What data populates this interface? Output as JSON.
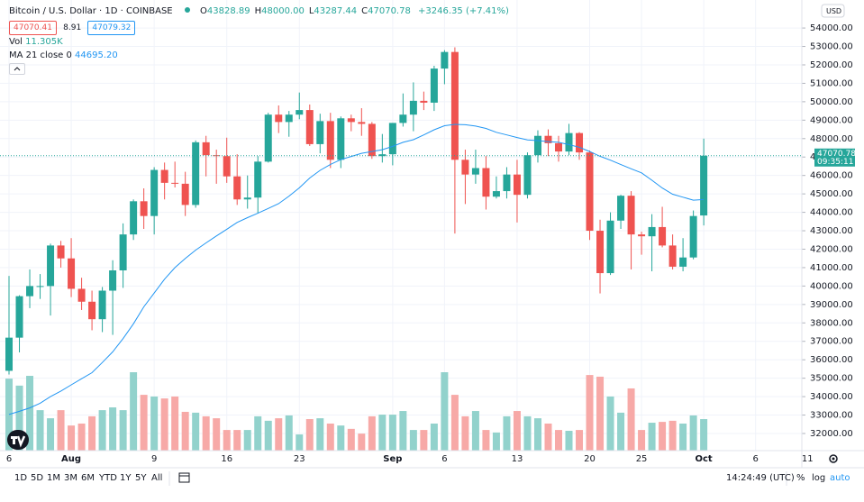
{
  "header": {
    "symbol": "Bitcoin / U.S. Dollar · 1D · COINBASE",
    "ohlc": [
      {
        "label": "O",
        "value": "43828.89"
      },
      {
        "label": "H",
        "value": "48000.00"
      },
      {
        "label": "L",
        "value": "43287.44"
      },
      {
        "label": "C",
        "value": "47070.78"
      }
    ],
    "change": "+3246.35 (+7.41%)",
    "bid": "47070.41",
    "spread": "8.91",
    "ask": "47079.32",
    "volume_label": "Vol",
    "volume_value": "11.305K",
    "ma_label": "MA 21 close 0",
    "ma_value": "44695.20"
  },
  "chart_data": {
    "type": "candlestick",
    "open": [
      35400,
      37200,
      39450,
      40000,
      40000,
      42200,
      41500,
      39850,
      39150,
      38200,
      39750,
      40850,
      42800,
      44600,
      43800,
      46300,
      45600,
      45550,
      44400,
      47800,
      47100,
      47050,
      45950,
      44700,
      44800,
      46750,
      49300,
      48900,
      49300,
      49550,
      47700,
      48950,
      46850,
      49100,
      48900,
      48800,
      47050,
      47150,
      48850,
      49300,
      50050,
      49950,
      51800,
      52700,
      46850,
      46050,
      46400,
      44850,
      45150,
      46050,
      44950,
      47100,
      48150,
      47750,
      47300,
      48300,
      47250,
      43000,
      40700,
      43550,
      44900,
      42800,
      42700,
      43200,
      42200,
      41050,
      41550,
      43828.89
    ],
    "high": [
      40550,
      39500,
      40900,
      40650,
      42300,
      42450,
      42600,
      40450,
      39750,
      39950,
      41400,
      43400,
      44700,
      45300,
      46450,
      46700,
      46750,
      46200,
      47900,
      48150,
      47400,
      48050,
      47150,
      46000,
      47050,
      49400,
      49800,
      49500,
      50500,
      49850,
      49350,
      49400,
      49200,
      49300,
      49650,
      48900,
      48250,
      48850,
      50450,
      51050,
      50550,
      51950,
      52800,
      52950,
      47400,
      47400,
      47050,
      45950,
      46450,
      46850,
      47250,
      48450,
      48500,
      48150,
      48800,
      48350,
      47350,
      43600,
      44000,
      44950,
      45150,
      42950,
      43900,
      44300,
      42800,
      42600,
      44100,
      48000
    ],
    "low": [
      35200,
      36400,
      38800,
      39300,
      38400,
      41000,
      39400,
      38700,
      37600,
      37500,
      37350,
      39900,
      42500,
      43100,
      42800,
      44700,
      45350,
      43800,
      44250,
      45950,
      45550,
      45600,
      44400,
      44200,
      43950,
      46700,
      48300,
      48100,
      49050,
      47600,
      47200,
      46400,
      46400,
      48400,
      48150,
      46900,
      46700,
      46550,
      48650,
      48400,
      49550,
      49500,
      50950,
      42850,
      44450,
      45550,
      44150,
      44750,
      44750,
      43450,
      44750,
      46700,
      47050,
      46750,
      47100,
      46850,
      42500,
      39600,
      40600,
      43100,
      40900,
      41700,
      40800,
      42100,
      40900,
      40800,
      41450,
      43287.44
    ],
    "close": [
      37200,
      39450,
      40000,
      40000,
      42200,
      41500,
      39850,
      39150,
      38200,
      39750,
      40850,
      42800,
      44600,
      43800,
      46300,
      45600,
      45550,
      44400,
      47800,
      47100,
      47050,
      45950,
      44700,
      44800,
      46750,
      49300,
      48900,
      49300,
      49550,
      47700,
      48950,
      46850,
      49100,
      48900,
      48800,
      47050,
      47150,
      48850,
      49300,
      50050,
      49950,
      51800,
      52700,
      46850,
      46050,
      46400,
      44850,
      45150,
      46050,
      44950,
      47100,
      48150,
      47750,
      47300,
      48300,
      47250,
      43000,
      40700,
      43550,
      44900,
      42800,
      42700,
      43200,
      42200,
      41050,
      41550,
      43800,
      47070.78
    ],
    "volume": [
      25.8,
      23.3,
      26.8,
      14.5,
      11.6,
      14.5,
      9.0,
      9.7,
      12.3,
      14.5,
      15.5,
      14.5,
      28.1,
      20.0,
      19.4,
      18.7,
      19.4,
      13.9,
      13.6,
      12.3,
      11.6,
      7.4,
      7.4,
      7.4,
      12.3,
      10.7,
      11.6,
      12.6,
      5.8,
      11.3,
      11.6,
      9.7,
      9.0,
      7.8,
      6.1,
      12.3,
      12.9,
      12.9,
      14.2,
      7.4,
      7.4,
      9.7,
      28.1,
      20.0,
      12.3,
      14.2,
      7.4,
      6.5,
      12.3,
      14.2,
      12.3,
      11.6,
      9.7,
      7.4,
      7.1,
      7.4,
      27.1,
      26.5,
      19.4,
      13.6,
      22.3,
      7.4,
      10.0,
      10.3,
      10.7,
      9.7,
      12.6,
      11.305
    ],
    "ma": [
      33030,
      33200,
      33390,
      33640,
      34000,
      34300,
      34640,
      34970,
      35300,
      35850,
      36430,
      37150,
      37950,
      38870,
      39620,
      40370,
      41000,
      41500,
      41950,
      42340,
      42720,
      43080,
      43450,
      43710,
      43950,
      44210,
      44470,
      44880,
      45330,
      45860,
      46280,
      46600,
      46860,
      47030,
      47200,
      47300,
      47400,
      47580,
      47800,
      47940,
      48200,
      48480,
      48700,
      48770,
      48750,
      48680,
      48550,
      48340,
      48200,
      48060,
      47930,
      47890,
      47840,
      47800,
      47670,
      47530,
      47300,
      47040,
      46830,
      46590,
      46360,
      46140,
      45740,
      45320,
      44980,
      44820,
      44660,
      44695.2
    ],
    "up_color": "#26a69a",
    "down_color": "#ef5350",
    "volume_up_color": "#92d2cc",
    "volume_down_color": "#f7a9a7",
    "ma_color": "#2196f3",
    "ylim": [
      31070,
      55520
    ],
    "yticks": [
      {
        "value": 32000,
        "label": "32000.00"
      },
      {
        "value": 33000,
        "label": "33000.00"
      },
      {
        "value": 34000,
        "label": "34000.00"
      },
      {
        "value": 35000,
        "label": "35000.00"
      },
      {
        "value": 36000,
        "label": "36000.00"
      },
      {
        "value": 37000,
        "label": "37000.00"
      },
      {
        "value": 38000,
        "label": "38000.00"
      },
      {
        "value": 39000,
        "label": "39000.00"
      },
      {
        "value": 40000,
        "label": "40000.00"
      },
      {
        "value": 41000,
        "label": "41000.00"
      },
      {
        "value": 42000,
        "label": "42000.00"
      },
      {
        "value": 43000,
        "label": "43000.00"
      },
      {
        "value": 44000,
        "label": "44000.00"
      },
      {
        "value": 45000,
        "label": "45000.00"
      },
      {
        "value": 46000,
        "label": "46000.00"
      },
      {
        "value": 47000,
        "label": "47000.00"
      },
      {
        "value": 48000,
        "label": "48000.00"
      },
      {
        "value": 49000,
        "label": "49000.00"
      },
      {
        "value": 50000,
        "label": "50000.00"
      },
      {
        "value": 51000,
        "label": "51000.00"
      },
      {
        "value": 52000,
        "label": "52000.00"
      },
      {
        "value": 53000,
        "label": "53000.00"
      },
      {
        "value": 54000,
        "label": "54000.00"
      }
    ],
    "xlim": [
      -0.87,
      76.46
    ],
    "xticks": [
      {
        "value": 0,
        "label": "6"
      },
      {
        "value": 6,
        "label": "Aug"
      },
      {
        "value": 14,
        "label": "9"
      },
      {
        "value": 21,
        "label": "16"
      },
      {
        "value": 28,
        "label": "23"
      },
      {
        "value": 37,
        "label": "Sep"
      },
      {
        "value": 42,
        "label": "6"
      },
      {
        "value": 49,
        "label": "13"
      },
      {
        "value": 56,
        "label": "20"
      },
      {
        "value": 61,
        "label": "25"
      },
      {
        "value": 67,
        "label": "Oct"
      },
      {
        "value": 72,
        "label": "6"
      },
      {
        "value": 77,
        "label": "11"
      }
    ],
    "grid": true,
    "countdown": "09:35:11",
    "currency": "USD"
  },
  "toolbar": {
    "ranges": [
      "1D",
      "5D",
      "1M",
      "3M",
      "6M",
      "YTD",
      "1Y",
      "5Y",
      "All"
    ],
    "time": "14:24:49 (UTC)",
    "options": [
      "%",
      "log",
      "auto"
    ]
  }
}
